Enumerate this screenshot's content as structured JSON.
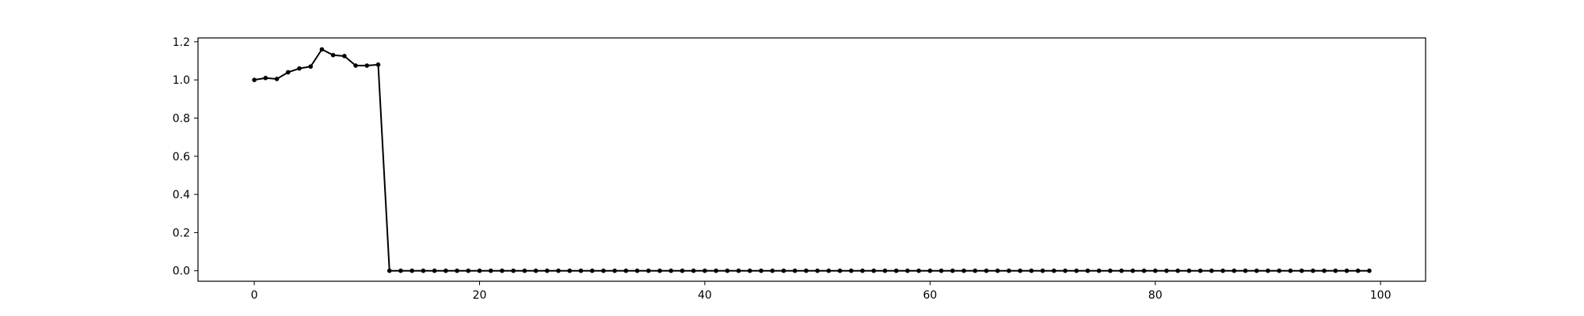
{
  "chart_data": {
    "type": "line",
    "title": "",
    "xlabel": "",
    "ylabel": "",
    "xlim": [
      -5,
      104
    ],
    "ylim": [
      -0.055,
      1.22
    ],
    "x_ticks": [
      0,
      20,
      40,
      60,
      80,
      100
    ],
    "x_tick_labels": [
      "0",
      "20",
      "40",
      "60",
      "80",
      "100"
    ],
    "y_ticks": [
      0.0,
      0.2,
      0.4,
      0.6,
      0.8,
      1.0,
      1.2
    ],
    "y_tick_labels": [
      "0.0",
      "0.2",
      "0.4",
      "0.6",
      "0.8",
      "1.0",
      "1.2"
    ],
    "grid": false,
    "series": [
      {
        "color": "#000000",
        "marker": "circle",
        "x": [
          0,
          1,
          2,
          3,
          4,
          5,
          6,
          7,
          8,
          9,
          10,
          11,
          12,
          13,
          14,
          15,
          16,
          17,
          18,
          19,
          20,
          21,
          22,
          23,
          24,
          25,
          26,
          27,
          28,
          29,
          30,
          31,
          32,
          33,
          34,
          35,
          36,
          37,
          38,
          39,
          40,
          41,
          42,
          43,
          44,
          45,
          46,
          47,
          48,
          49,
          50,
          51,
          52,
          53,
          54,
          55,
          56,
          57,
          58,
          59,
          60,
          61,
          62,
          63,
          64,
          65,
          66,
          67,
          68,
          69,
          70,
          71,
          72,
          73,
          74,
          75,
          76,
          77,
          78,
          79,
          80,
          81,
          82,
          83,
          84,
          85,
          86,
          87,
          88,
          89,
          90,
          91,
          92,
          93,
          94,
          95,
          96,
          97,
          98,
          99
        ],
        "y": [
          1.0,
          1.01,
          1.005,
          1.04,
          1.06,
          1.07,
          1.16,
          1.13,
          1.125,
          1.075,
          1.075,
          1.08,
          0,
          0,
          0,
          0,
          0,
          0,
          0,
          0,
          0,
          0,
          0,
          0,
          0,
          0,
          0,
          0,
          0,
          0,
          0,
          0,
          0,
          0,
          0,
          0,
          0,
          0,
          0,
          0,
          0,
          0,
          0,
          0,
          0,
          0,
          0,
          0,
          0,
          0,
          0,
          0,
          0,
          0,
          0,
          0,
          0,
          0,
          0,
          0,
          0,
          0,
          0,
          0,
          0,
          0,
          0,
          0,
          0,
          0,
          0,
          0,
          0,
          0,
          0,
          0,
          0,
          0,
          0,
          0,
          0,
          0,
          0,
          0,
          0,
          0,
          0,
          0,
          0,
          0,
          0,
          0,
          0,
          0,
          0,
          0,
          0,
          0,
          0,
          0
        ]
      }
    ]
  }
}
